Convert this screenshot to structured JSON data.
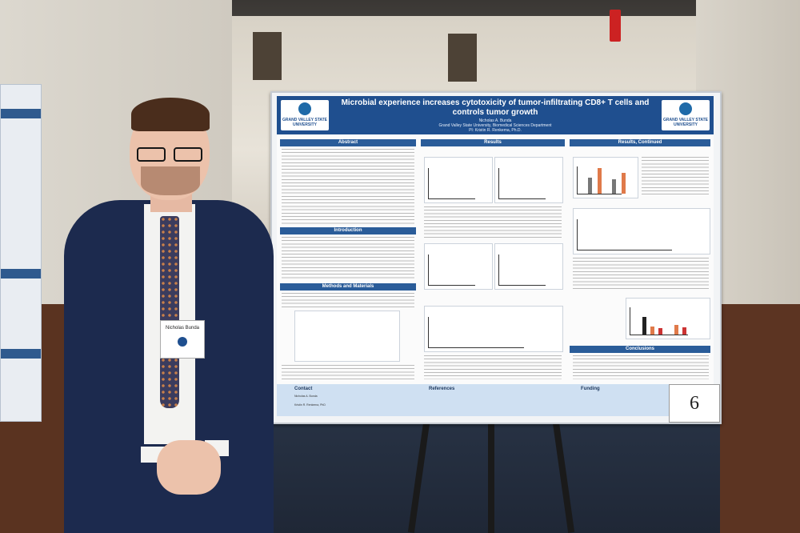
{
  "poster": {
    "title": "Microbial experience increases cytotoxicity of tumor-infiltrating CD8+ T cells and controls tumor growth",
    "author": "Nicholas A. Bunda",
    "affiliation": "Grand Valley State University, Biomedical Sciences Department",
    "pi": "PI: Kristin R. Renkema, Ph.D.",
    "logo_text": "GRAND VALLEY STATE UNIVERSITY",
    "sections": {
      "abstract": "Abstract",
      "introduction": "Introduction",
      "methods": "Methods and Materials",
      "results": "Results",
      "results_continued": "Results, Continued",
      "conclusions": "Conclusions",
      "contact": "Contact",
      "references": "References",
      "funding": "Funding"
    },
    "contact_name": "Nicholas A. Bunda",
    "contact_pi": "Kristin R. Renkema, PhD"
  },
  "board_number": "6",
  "badge": {
    "name": "Nicholas Bunda"
  }
}
